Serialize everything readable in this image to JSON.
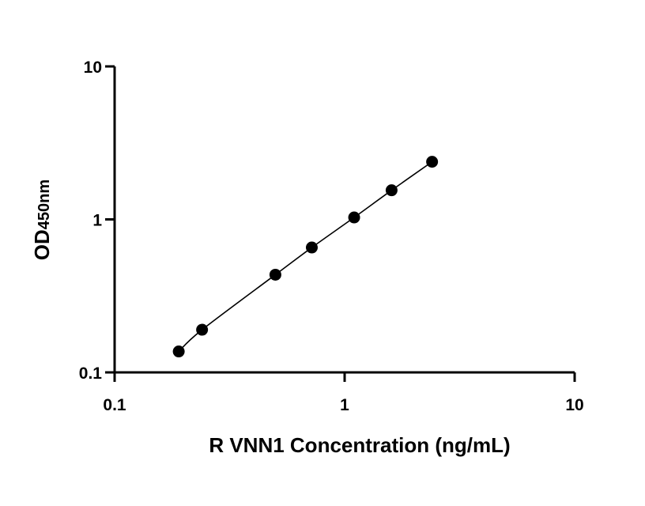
{
  "chart_data": {
    "type": "scatter",
    "x_scale": "log",
    "y_scale": "log",
    "xlim": [
      0.1,
      10
    ],
    "ylim": [
      0.1,
      10
    ],
    "x_ticks": [
      "0.1",
      "1",
      "10"
    ],
    "y_ticks": [
      "0.1",
      "1",
      "10"
    ],
    "xlabel": "R VNN1 Concentration (ng/mL)",
    "ylabel_main": "OD",
    "ylabel_sub": "450nm",
    "grid": false,
    "legend": "none",
    "fit_line": true,
    "series": [
      {
        "x": [
          0.19,
          0.24,
          0.5,
          0.72,
          1.1,
          1.6,
          2.4
        ],
        "y": [
          0.137,
          0.19,
          0.435,
          0.655,
          1.03,
          1.55,
          2.38
        ]
      }
    ]
  }
}
